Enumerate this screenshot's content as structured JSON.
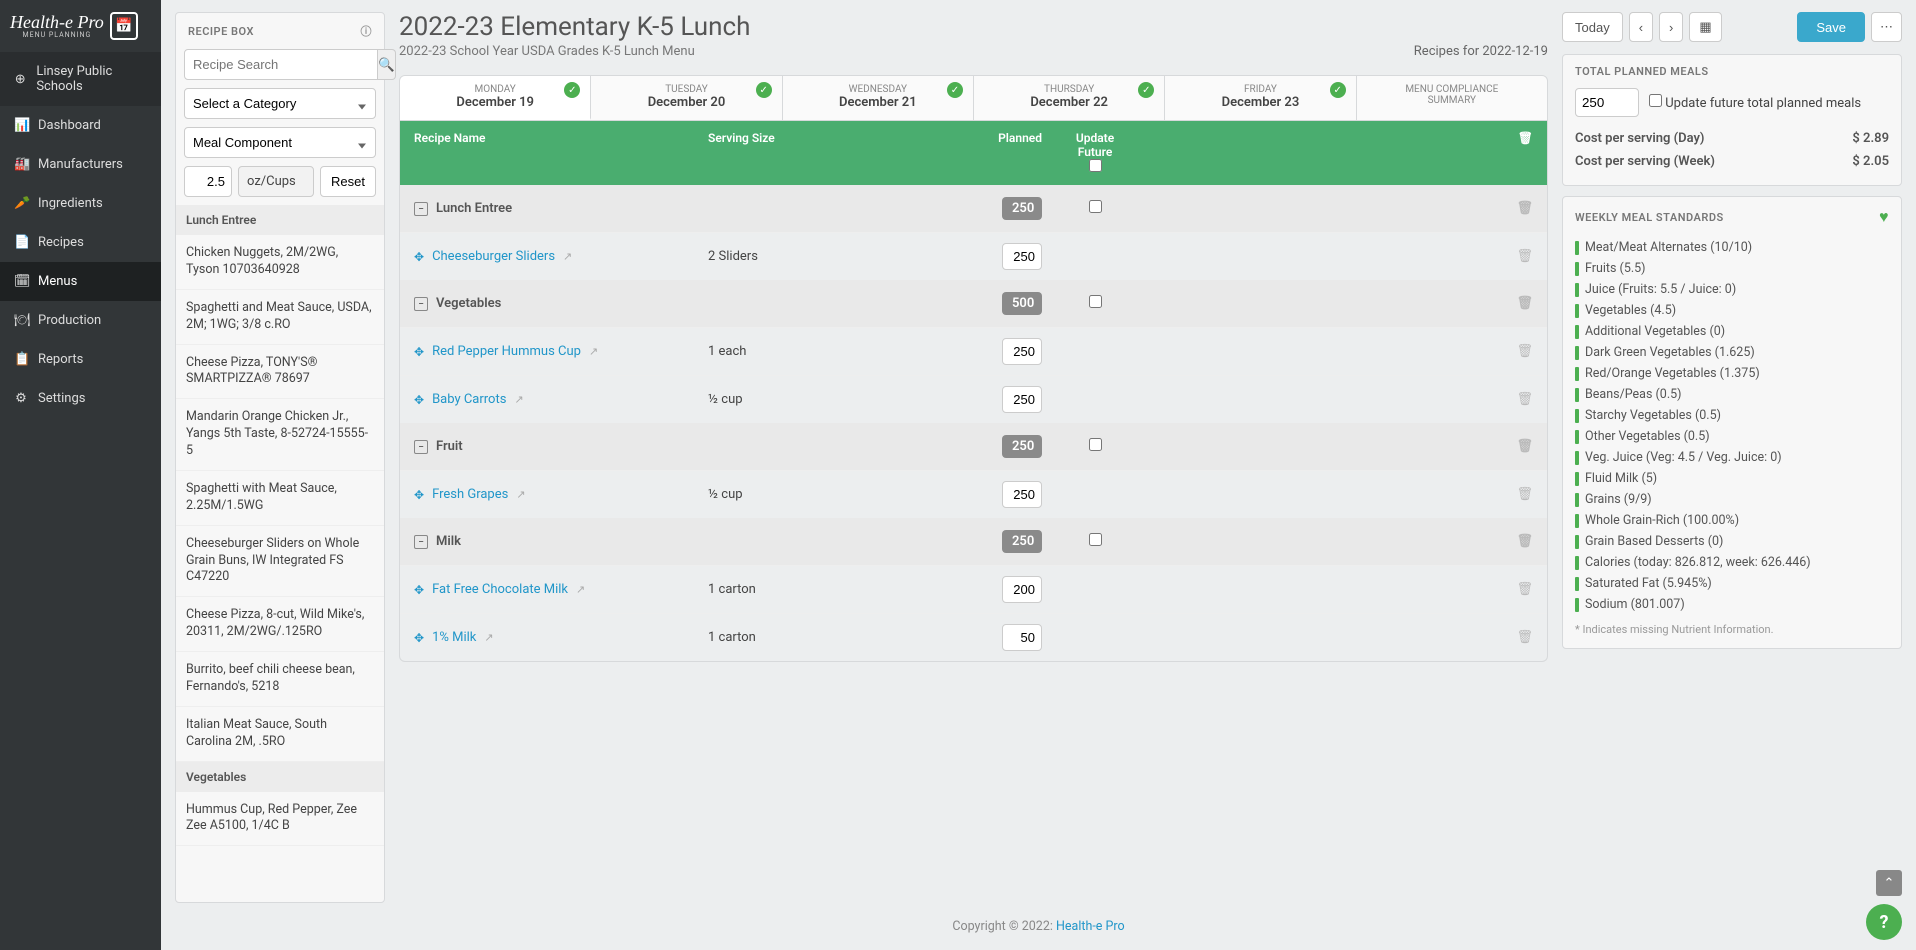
{
  "brand": {
    "name": "Health-e Pro",
    "sub": "MENU PLANNING"
  },
  "nav": {
    "org": "Linsey Public Schools",
    "items": [
      {
        "label": "Dashboard",
        "icon": "chart"
      },
      {
        "label": "Manufacturers",
        "icon": "factory"
      },
      {
        "label": "Ingredients",
        "icon": "carrot"
      },
      {
        "label": "Recipes",
        "icon": "file"
      },
      {
        "label": "Menus",
        "icon": "cal",
        "active": true
      },
      {
        "label": "Production",
        "icon": "plate"
      },
      {
        "label": "Reports",
        "icon": "doc"
      },
      {
        "label": "Settings",
        "icon": "gear"
      }
    ]
  },
  "recipeBox": {
    "title": "RECIPE BOX",
    "searchPlaceholder": "Recipe Search",
    "categoryPlaceholder": "Select a Category",
    "componentValue": "Meal Component",
    "amount": "2.5",
    "units": "oz/Cups",
    "reset": "Reset",
    "sections": [
      {
        "name": "Lunch Entree",
        "items": [
          "Chicken Nuggets, 2M/2WG, Tyson 10703640928",
          "Spaghetti and Meat Sauce, USDA, 2M; 1WG; 3/8 c.RO",
          "Cheese Pizza, TONY'S® SMARTPIZZA® 78697",
          "Mandarin Orange Chicken Jr., Yangs 5th Taste, 8-52724-15555-5",
          "Spaghetti with Meat Sauce, 2.25M/1.5WG",
          "Cheeseburger Sliders on Whole Grain Buns, IW Integrated FS C47220",
          "Cheese Pizza, 8-cut, Wild Mike's, 20311, 2M/2WG/.125RO",
          "Burrito, beef chili cheese bean, Fernando's, 5218",
          "Italian Meat Sauce, South Carolina 2M, .5RO"
        ]
      },
      {
        "name": "Vegetables",
        "items": [
          "Hummus Cup, Red Pepper, Zee Zee A5100, 1/4C B"
        ]
      }
    ]
  },
  "page": {
    "title": "2022-23 Elementary K-5 Lunch",
    "subtitle": "2022-23 School Year USDA Grades K-5 Lunch Menu",
    "recipesFor": "Recipes for 2022-12-19"
  },
  "topButtons": {
    "today": "Today",
    "save": "Save"
  },
  "days": [
    {
      "name": "MONDAY",
      "date": "December 19",
      "active": true
    },
    {
      "name": "TUESDAY",
      "date": "December 20"
    },
    {
      "name": "WEDNESDAY",
      "date": "December 21"
    },
    {
      "name": "THURSDAY",
      "date": "December 22"
    },
    {
      "name": "FRIDAY",
      "date": "December 23"
    }
  ],
  "compliance": {
    "line1": "MENU COMPLIANCE",
    "line2": "SUMMARY"
  },
  "menuTable": {
    "headers": {
      "name": "Recipe Name",
      "size": "Serving Size",
      "planned": "Planned",
      "future": "Update Future"
    },
    "groups": [
      {
        "name": "Lunch Entree",
        "count": "250",
        "rows": [
          {
            "name": "Cheeseburger Sliders",
            "size": "2 Sliders",
            "planned": "250"
          }
        ]
      },
      {
        "name": "Vegetables",
        "count": "500",
        "rows": [
          {
            "name": "Red Pepper Hummus Cup",
            "size": "1 each",
            "planned": "250"
          },
          {
            "name": "Baby Carrots",
            "size": "½ cup",
            "planned": "250"
          }
        ]
      },
      {
        "name": "Fruit",
        "count": "250",
        "rows": [
          {
            "name": "Fresh Grapes",
            "size": "½ cup",
            "planned": "250"
          }
        ]
      },
      {
        "name": "Milk",
        "count": "250",
        "rows": [
          {
            "name": "Fat Free Chocolate Milk",
            "size": "1 carton",
            "planned": "200"
          },
          {
            "name": "1% Milk",
            "size": "1 carton",
            "planned": "50"
          }
        ]
      }
    ]
  },
  "plannedMeals": {
    "title": "TOTAL PLANNED MEALS",
    "value": "250",
    "updateLabel": "Update future total planned meals",
    "costDayLabel": "Cost per serving (Day)",
    "costDay": "$ 2.89",
    "costWeekLabel": "Cost per serving (Week)",
    "costWeek": "$ 2.05"
  },
  "standards": {
    "title": "WEEKLY MEAL STANDARDS",
    "items": [
      "Meat/Meat Alternates (10/10)",
      "Fruits (5.5)",
      "Juice (Fruits: 5.5 / Juice: 0)",
      "Vegetables (4.5)",
      "Additional Vegetables (0)",
      "Dark Green Vegetables (1.625)",
      "Red/Orange Vegetables (1.375)",
      "Beans/Peas (0.5)",
      "Starchy Vegetables (0.5)",
      "Other Vegetables (0.5)",
      "Veg. Juice (Veg: 4.5 / Veg. Juice: 0)",
      "Fluid Milk (5)",
      "Grains (9/9)",
      "Whole Grain-Rich (100.00%)",
      "Grain Based Desserts (0)",
      "Calories (today: 826.812, week: 626.446)",
      "Saturated Fat (5.945%)",
      "Sodium (801.007)"
    ],
    "footnote": "* Indicates missing Nutrient Information."
  },
  "footer": {
    "text": "Copyright © 2022: ",
    "link": "Health-e Pro"
  }
}
